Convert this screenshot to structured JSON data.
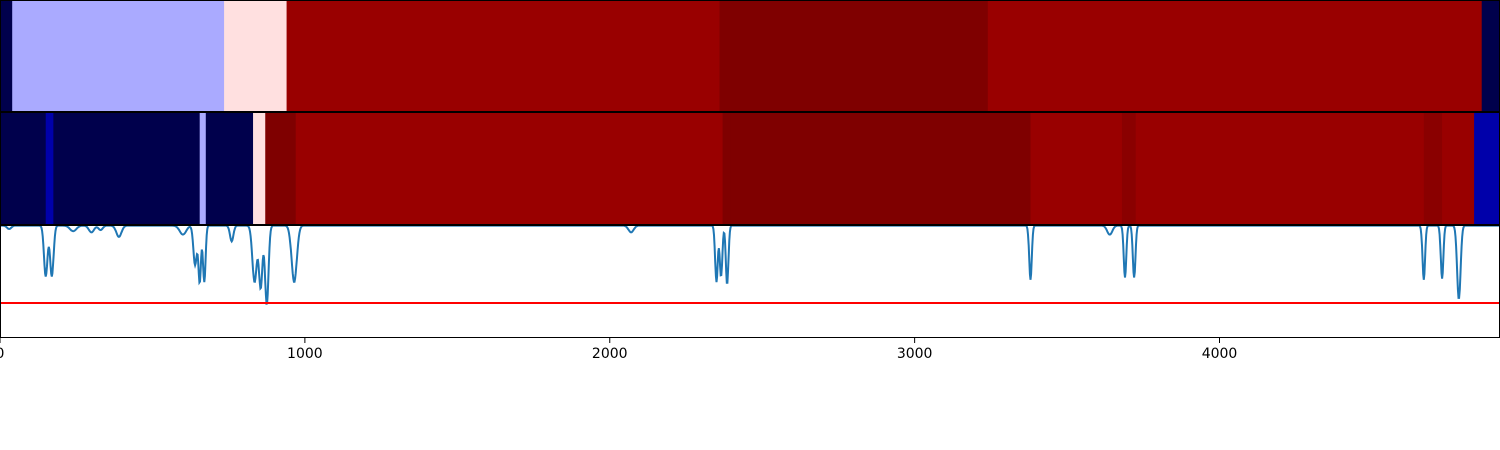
{
  "chart_data": [
    {
      "type": "heatmap",
      "title": "",
      "xlabel": "",
      "ylabel": "",
      "xlim": [
        0,
        4920
      ],
      "segments": [
        {
          "start": 0,
          "end": 40,
          "color": "#00004c"
        },
        {
          "start": 40,
          "end": 735,
          "color": "#aaaaff"
        },
        {
          "start": 735,
          "end": 940,
          "color": "#ffe0e0"
        },
        {
          "start": 940,
          "end": 2360,
          "color": "#990000"
        },
        {
          "start": 2360,
          "end": 3240,
          "color": "#7f0000"
        },
        {
          "start": 3240,
          "end": 4860,
          "color": "#990000"
        },
        {
          "start": 4860,
          "end": 4920,
          "color": "#00004c"
        }
      ]
    },
    {
      "type": "heatmap",
      "title": "",
      "xlabel": "",
      "ylabel": "",
      "xlim": [
        0,
        4920
      ],
      "segments": [
        {
          "start": 0,
          "end": 150,
          "color": "#00004c"
        },
        {
          "start": 150,
          "end": 175,
          "color": "#0000aa"
        },
        {
          "start": 175,
          "end": 655,
          "color": "#00004c"
        },
        {
          "start": 655,
          "end": 675,
          "color": "#aaaaff"
        },
        {
          "start": 675,
          "end": 830,
          "color": "#00004c"
        },
        {
          "start": 830,
          "end": 870,
          "color": "#ffe0e0"
        },
        {
          "start": 870,
          "end": 970,
          "color": "#7f0000"
        },
        {
          "start": 970,
          "end": 2370,
          "color": "#990000"
        },
        {
          "start": 2370,
          "end": 2395,
          "color": "#7f0000"
        },
        {
          "start": 2395,
          "end": 3380,
          "color": "#7f0000"
        },
        {
          "start": 3380,
          "end": 3680,
          "color": "#990000"
        },
        {
          "start": 3680,
          "end": 3725,
          "color": "#8a0000"
        },
        {
          "start": 3725,
          "end": 4670,
          "color": "#990000"
        },
        {
          "start": 4670,
          "end": 4730,
          "color": "#8a0000"
        },
        {
          "start": 4730,
          "end": 4835,
          "color": "#990000"
        },
        {
          "start": 4835,
          "end": 4920,
          "color": "#0000aa"
        }
      ]
    },
    {
      "type": "line",
      "title": "",
      "xlabel": "",
      "ylabel": "",
      "xlim": [
        0,
        4920
      ],
      "ylim": [
        0,
        1
      ],
      "x_ticks": [
        0,
        1000,
        2000,
        3000,
        4000
      ],
      "x_tick_labels": [
        "0",
        "1000",
        "2000",
        "3000",
        "4000"
      ],
      "threshold": 0.31,
      "threshold_color": "#ff0000",
      "series_color": "#1f77b4",
      "baseline": 0.995,
      "dips": [
        {
          "x": 30,
          "width": 10,
          "depth": 0.03
        },
        {
          "x": 150,
          "width": 8,
          "depth": 0.45
        },
        {
          "x": 170,
          "width": 8,
          "depth": 0.45
        },
        {
          "x": 240,
          "width": 15,
          "depth": 0.05
        },
        {
          "x": 300,
          "width": 12,
          "depth": 0.06
        },
        {
          "x": 330,
          "width": 10,
          "depth": 0.04
        },
        {
          "x": 390,
          "width": 12,
          "depth": 0.1
        },
        {
          "x": 600,
          "width": 15,
          "depth": 0.08
        },
        {
          "x": 640,
          "width": 8,
          "depth": 0.35
        },
        {
          "x": 655,
          "width": 6,
          "depth": 0.5
        },
        {
          "x": 670,
          "width": 6,
          "depth": 0.5
        },
        {
          "x": 760,
          "width": 8,
          "depth": 0.14
        },
        {
          "x": 835,
          "width": 10,
          "depth": 0.5
        },
        {
          "x": 855,
          "width": 8,
          "depth": 0.55
        },
        {
          "x": 875,
          "width": 8,
          "depth": 0.7
        },
        {
          "x": 965,
          "width": 12,
          "depth": 0.5
        },
        {
          "x": 2070,
          "width": 12,
          "depth": 0.06
        },
        {
          "x": 2350,
          "width": 6,
          "depth": 0.5
        },
        {
          "x": 2365,
          "width": 6,
          "depth": 0.45
        },
        {
          "x": 2385,
          "width": 6,
          "depth": 0.52
        },
        {
          "x": 3380,
          "width": 6,
          "depth": 0.48
        },
        {
          "x": 3640,
          "width": 12,
          "depth": 0.08
        },
        {
          "x": 3690,
          "width": 6,
          "depth": 0.46
        },
        {
          "x": 3720,
          "width": 6,
          "depth": 0.46
        },
        {
          "x": 4670,
          "width": 6,
          "depth": 0.48
        },
        {
          "x": 4730,
          "width": 6,
          "depth": 0.47
        },
        {
          "x": 4785,
          "width": 8,
          "depth": 0.65
        }
      ]
    }
  ]
}
